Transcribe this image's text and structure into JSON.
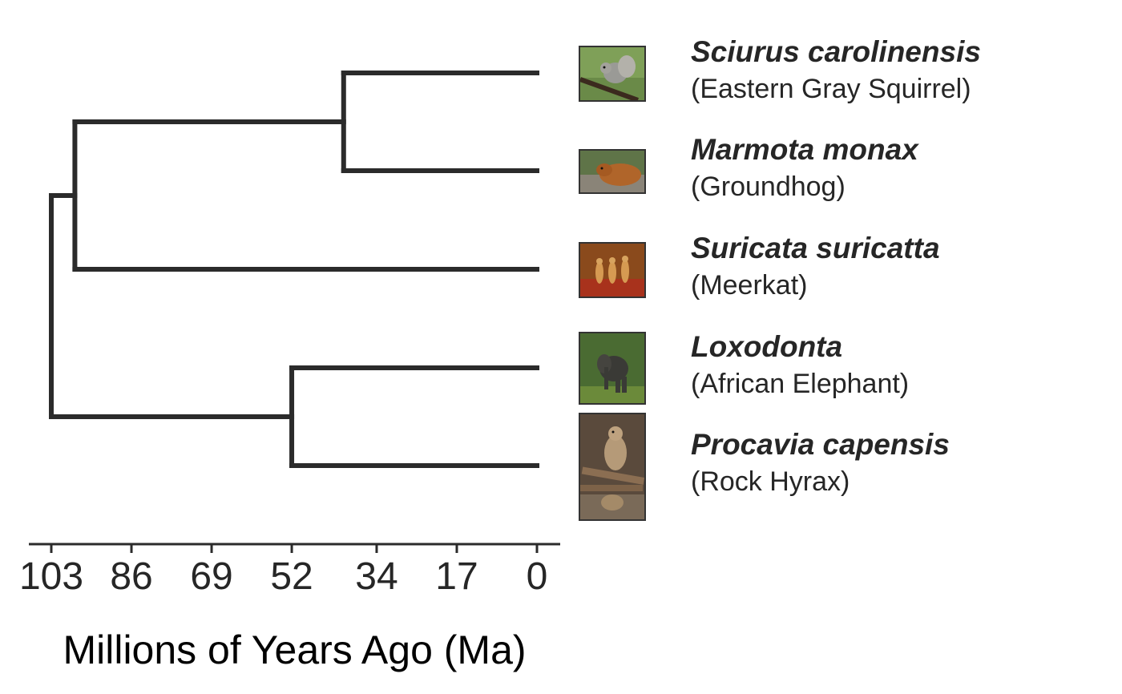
{
  "axis": {
    "title": "Millions of Years Ago (Ma)",
    "ticks": [
      103,
      86,
      69,
      52,
      34,
      17,
      0
    ]
  },
  "taxa": [
    {
      "scientific": "Sciurus carolinensis",
      "common": "(Eastern Gray Squirrel)",
      "photo_icon": "squirrel-photo"
    },
    {
      "scientific": "Marmota monax",
      "common": "(Groundhog)",
      "photo_icon": "groundhog-photo"
    },
    {
      "scientific": "Suricata suricatta",
      "common": "(Meerkat)",
      "photo_icon": "meerkat-photo"
    },
    {
      "scientific": "Loxodonta",
      "common": "(African Elephant)",
      "photo_icon": "elephant-photo"
    },
    {
      "scientific": "Procavia capensis",
      "common": "(Rock Hyrax)",
      "photo_icon": "hyrax-photo"
    }
  ],
  "tree": {
    "root_age": 103,
    "nodes": [
      {
        "id": "squirrel-groundhog",
        "age": 41,
        "children": [
          "Sciurus carolinensis",
          "Marmota monax"
        ]
      },
      {
        "id": "rodent-meerkat",
        "age": 98,
        "children": [
          "squirrel-groundhog",
          "Suricata suricatta"
        ]
      },
      {
        "id": "elephant-hyrax",
        "age": 52,
        "children": [
          "Loxodonta",
          "Procavia capensis"
        ]
      },
      {
        "id": "root",
        "age": 103,
        "children": [
          "rodent-meerkat",
          "elephant-hyrax"
        ]
      }
    ]
  },
  "colors": {
    "branch": "#2b2b2b",
    "text": "#262626"
  }
}
